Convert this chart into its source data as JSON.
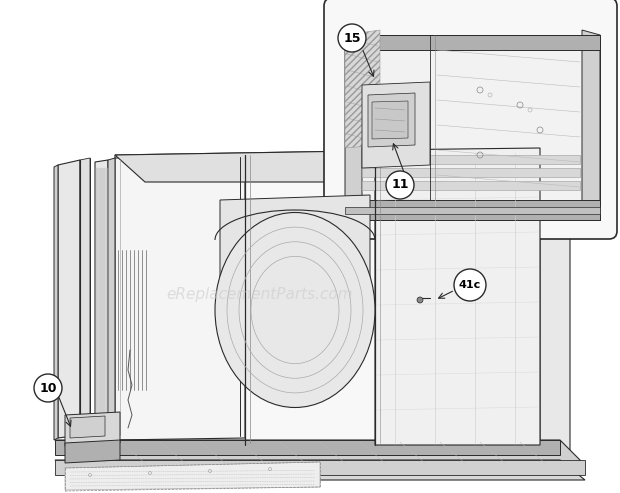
{
  "bg_color": "#ffffff",
  "line_color": "#2a2a2a",
  "gray_light": "#e8e8e8",
  "gray_mid": "#d0d0d0",
  "gray_dark": "#b0b0b0",
  "gray_darker": "#888888",
  "watermark_text": "eReplacementParts.com",
  "watermark_color": "#cccccc",
  "watermark_fontsize": 11,
  "figsize": [
    6.2,
    4.93
  ],
  "dpi": 100
}
